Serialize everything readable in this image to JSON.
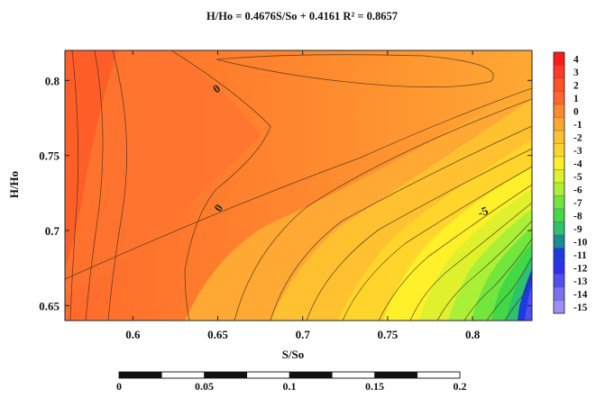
{
  "chart_data": {
    "type": "heatmap",
    "subtype": "contour",
    "title": "H/Ho = 0.4676S/So + 0.4161  R² = 0.8657",
    "xlabel": "S/So",
    "ylabel": "H/Ho",
    "xlim": [
      0.56,
      0.835
    ],
    "ylim": [
      0.64,
      0.82
    ],
    "x_ticks": [
      "0.6",
      "0.65",
      "0.7",
      "0.75",
      "0.8"
    ],
    "y_ticks": [
      "0.65",
      "0.7",
      "0.75",
      "0.8"
    ],
    "contour_labels": [
      "0",
      "0",
      "-5"
    ],
    "colorbar": {
      "levels": [
        "4",
        "3",
        "2",
        "1",
        "0",
        "-1",
        "-2",
        "-3",
        "-4",
        "-5",
        "-6",
        "-7",
        "-8",
        "-9",
        "-10",
        "-11",
        "-12",
        "-13",
        "-14",
        "-15"
      ],
      "colors": [
        "#ff1a1a",
        "#ff3a22",
        "#ff5226",
        "#ff682a",
        "#ff8a2e",
        "#ffa833",
        "#ffc12f",
        "#ffd42b",
        "#fff02a",
        "#dff02d",
        "#aaf037",
        "#72e63c",
        "#43d946",
        "#2ec26e",
        "#1a8c94",
        "#1a3ce0",
        "#2e2eef",
        "#4f4ff2",
        "#7a70f2",
        "#9f8ef4"
      ]
    },
    "scale_bar": {
      "ticks": [
        "0",
        "0.05",
        "0.1",
        "0.15",
        "0.2"
      ]
    },
    "grid": false,
    "legend_placement": "right"
  }
}
